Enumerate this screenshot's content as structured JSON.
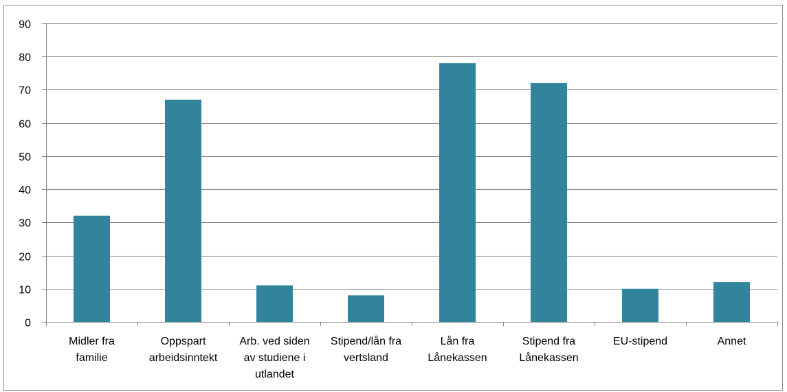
{
  "chart_data": {
    "type": "bar",
    "title": "",
    "xlabel": "",
    "ylabel": "",
    "categories": [
      [
        "Midler fra",
        "familie"
      ],
      [
        "Oppspart",
        "arbeidsinntekt"
      ],
      [
        "Arb. ved siden",
        "av studiene i",
        "utlandet"
      ],
      [
        "Stipend/lån fra",
        "vertsland"
      ],
      [
        "Lån fra",
        "Lånekassen"
      ],
      [
        "Stipend fra",
        "Lånekassen"
      ],
      [
        "EU-stipend"
      ],
      [
        "Annet"
      ]
    ],
    "values": [
      32,
      67,
      11,
      8,
      78,
      72,
      10,
      12
    ],
    "ylim": [
      0,
      90
    ],
    "yticks": [
      0,
      10,
      20,
      30,
      40,
      50,
      60,
      70,
      80,
      90
    ],
    "grid": true,
    "legend": "none",
    "bar_color": "#31849b",
    "gridline_color": "#868686"
  }
}
